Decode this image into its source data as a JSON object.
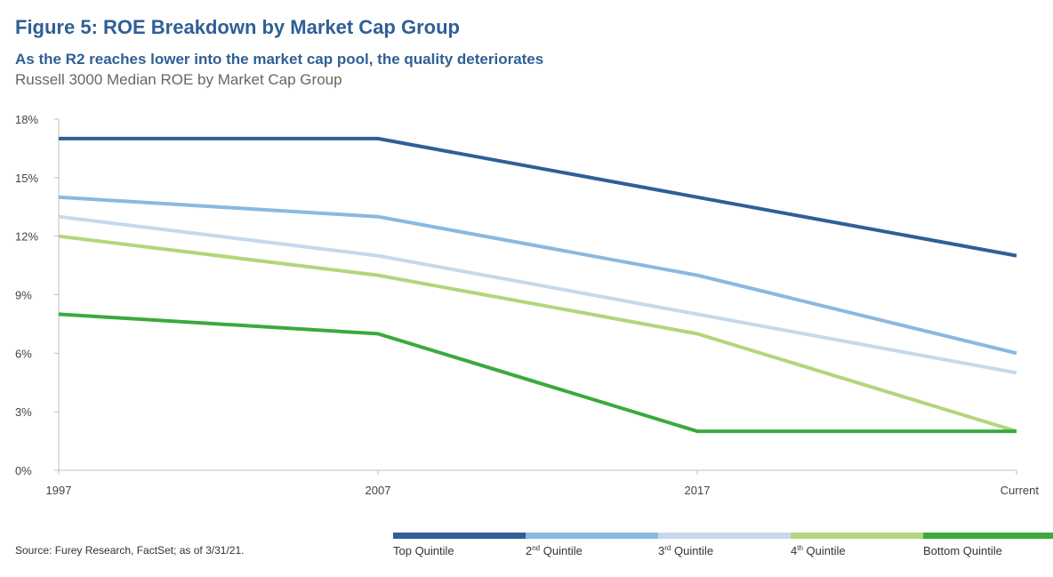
{
  "header": {
    "title": "Figure 5: ROE Breakdown by Market Cap Group",
    "subtitle": "As the R2 reaches lower into the market cap pool, the quality deteriorates",
    "caption": "Russell 3000 Median ROE by Market Cap Group"
  },
  "footer": {
    "source": "Source: Furey Research, FactSet; as of 3/31/21."
  },
  "chart_data": {
    "type": "line",
    "categories": [
      "1997",
      "2007",
      "2017",
      "Current"
    ],
    "ylim": [
      0,
      18
    ],
    "yticks": [
      0,
      3,
      6,
      9,
      12,
      15,
      18
    ],
    "ytick_labels": [
      "0%",
      "3%",
      "6%",
      "9%",
      "12%",
      "15%",
      "18%"
    ],
    "grid": false,
    "legend_position": "bottom-right",
    "series": [
      {
        "name": "Top Quintile",
        "label_base": "Top Quintile",
        "label_sup": "",
        "label_rest": "",
        "color": "#2f5f96",
        "values": [
          17,
          17,
          14,
          11
        ]
      },
      {
        "name": "2nd Quintile",
        "label_base": "2",
        "label_sup": "nd",
        "label_rest": " Quintile",
        "color": "#8ab8e0",
        "values": [
          14,
          13,
          10,
          6
        ]
      },
      {
        "name": "3rd Quintile",
        "label_base": "3",
        "label_sup": "rd",
        "label_rest": " Quintile",
        "color": "#c6d9ec",
        "values": [
          13,
          11,
          8,
          5
        ]
      },
      {
        "name": "4th Quintile",
        "label_base": "4",
        "label_sup": "th",
        "label_rest": " Quintile",
        "color": "#b2d67a",
        "values": [
          12,
          10,
          7,
          2
        ]
      },
      {
        "name": "Bottom Quintile",
        "label_base": "Bottom Quintile",
        "label_sup": "",
        "label_rest": "",
        "color": "#3aaa3e",
        "values": [
          8,
          7,
          2,
          2
        ]
      }
    ]
  }
}
